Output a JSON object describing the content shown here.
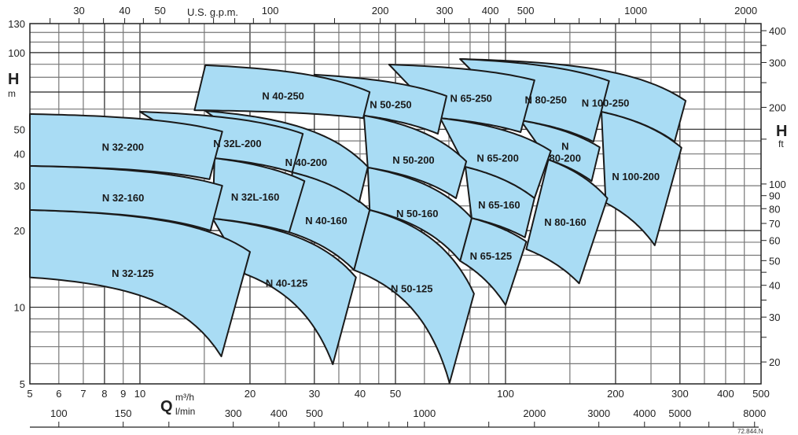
{
  "chart_data": {
    "type": "area",
    "title": "",
    "x_scale": "log",
    "y_scale": "log",
    "xlim": [
      5,
      500
    ],
    "ylim": [
      5,
      130
    ],
    "grid": true,
    "fill_color": "#a9dcf4",
    "line_color": "#1a1a1a",
    "left_axis": {
      "symbol": "H",
      "unit": "m",
      "ticks": [
        5,
        10,
        20,
        30,
        40,
        50,
        100,
        130
      ]
    },
    "right_axis": {
      "symbol": "H",
      "unit": "ft",
      "ticks": [
        20,
        30,
        40,
        50,
        60,
        70,
        80,
        90,
        100,
        200,
        300,
        400
      ],
      "minor_ticks": [
        25,
        35,
        45,
        150,
        250,
        350
      ]
    },
    "top_axis": {
      "unit": "U.S. g.p.m.",
      "ticks": [
        30,
        40,
        50,
        100,
        200,
        300,
        400,
        500,
        1000,
        2000
      ],
      "minor_ticks": [
        25,
        35,
        45,
        60,
        70,
        80,
        90,
        150,
        250,
        350,
        450,
        600,
        700,
        800,
        900,
        1500
      ]
    },
    "bottom_axis": {
      "symbol": "Q",
      "unit": "m³/h",
      "ticks": [
        5,
        6,
        7,
        8,
        9,
        10,
        20,
        30,
        40,
        50,
        100,
        200,
        300,
        400,
        500
      ]
    },
    "lmin_axis": {
      "unit": "l/min",
      "ticks": [
        100,
        150,
        300,
        400,
        500,
        1000,
        2000,
        3000,
        4000,
        5000,
        8000
      ],
      "minor_ticks": [
        200,
        600,
        700,
        800,
        900,
        1500,
        6000,
        7000
      ]
    },
    "code": "72.844.N",
    "regions": [
      {
        "name": "N 100-200",
        "corners": [
          [
            183,
            58.6
          ],
          [
            303,
            42.3
          ],
          [
            256,
            17.5
          ],
          [
            188,
            25.7
          ]
        ]
      },
      {
        "name": "N 100-250",
        "corners": [
          [
            75.1,
            94.4
          ],
          [
            311,
            64.7
          ],
          [
            290,
            44.7
          ],
          [
            183,
            58.6
          ]
        ]
      },
      {
        "name": "N 80-160",
        "corners": [
          [
            131,
            38.0
          ],
          [
            190,
            26.8
          ],
          [
            159,
            12.4
          ],
          [
            114,
            16.9
          ]
        ]
      },
      {
        "name": "N\n80-200",
        "corners": [
          [
            110,
            54.2
          ],
          [
            181,
            42.5
          ],
          [
            172,
            31.3
          ],
          [
            131,
            38.0
          ]
        ]
      },
      {
        "name": "N 80-250",
        "corners": [
          [
            75.1,
            94.4
          ],
          [
            192,
            77.4
          ],
          [
            174,
            44.7
          ],
          [
            110,
            54.2
          ]
        ]
      },
      {
        "name": "N 65-125",
        "corners": [
          [
            80.8,
            22.4
          ],
          [
            114,
            18.1
          ],
          [
            100,
            10.2
          ],
          [
            75.1,
            15.2
          ]
        ]
      },
      {
        "name": "N 65-160",
        "corners": [
          [
            77.7,
            35.6
          ],
          [
            120,
            26.8
          ],
          [
            113,
            18.8
          ],
          [
            80.8,
            22.4
          ]
        ]
      },
      {
        "name": "N 65-200",
        "corners": [
          [
            66.3,
            55.3
          ],
          [
            133,
            41.1
          ],
          [
            120,
            26.8
          ],
          [
            77.7,
            35.6
          ]
        ]
      },
      {
        "name": "N 65-250",
        "corners": [
          [
            48.0,
            89.8
          ],
          [
            120,
            77.9
          ],
          [
            110,
            48.7
          ],
          [
            66.3,
            55.3
          ]
        ]
      },
      {
        "name": "N 50-125",
        "corners": [
          [
            42.5,
            24.1
          ],
          [
            82.0,
            11.3
          ],
          [
            70.3,
            5.04
          ],
          [
            38.5,
            14.0
          ]
        ]
      },
      {
        "name": "N 50-160",
        "corners": [
          [
            42.0,
            35.4
          ],
          [
            80.8,
            22.4
          ],
          [
            75.1,
            15.2
          ],
          [
            42.5,
            24.1
          ]
        ]
      },
      {
        "name": "N 50-200",
        "corners": [
          [
            41.0,
            56.6
          ],
          [
            78.1,
            37.4
          ],
          [
            73.2,
            26.8
          ],
          [
            42.0,
            35.4
          ]
        ]
      },
      {
        "name": "N 50-250",
        "corners": [
          [
            30,
            81.9
          ],
          [
            69.0,
            67.5
          ],
          [
            65.3,
            48.0
          ],
          [
            41.0,
            56.6
          ]
        ]
      },
      {
        "name": "N 40-125",
        "corners": [
          [
            15.8,
            22.3
          ],
          [
            39.0,
            13.1
          ],
          [
            33.7,
            5.97
          ],
          [
            19.4,
            13.5
          ]
        ]
      },
      {
        "name": "N 40-160",
        "corners": [
          [
            26.1,
            33.9
          ],
          [
            42.5,
            24.1
          ],
          [
            38.5,
            14.0
          ],
          [
            25.6,
            19.7
          ]
        ]
      },
      {
        "name": "N 40-200",
        "corners": [
          [
            15.1,
            59.0
          ],
          [
            42.0,
            35.6
          ],
          [
            39.8,
            25.9
          ],
          [
            26.1,
            33.9
          ]
        ]
      },
      {
        "name": "N 40-250",
        "corners": [
          [
            15.1,
            89.2
          ],
          [
            42.5,
            70.0
          ],
          [
            40.8,
            55.3
          ],
          [
            14.1,
            59.4
          ]
        ]
      },
      {
        "name": "N 32L-160",
        "corners": [
          [
            16.0,
            38.5
          ],
          [
            28.2,
            31.3
          ],
          [
            25.6,
            19.7
          ],
          [
            15.8,
            22.3
          ]
        ]
      },
      {
        "name": "N 32L-200",
        "corners": [
          [
            10,
            58.6
          ],
          [
            27.9,
            48.0
          ],
          [
            26.1,
            33.9
          ],
          [
            16.0,
            38.5
          ]
        ]
      },
      {
        "name": "N 32-125",
        "corners": [
          [
            5,
            24.1
          ],
          [
            20,
            16.5
          ],
          [
            16.7,
            6.41
          ],
          [
            5,
            13.1
          ]
        ]
      },
      {
        "name": "N 32-160",
        "corners": [
          [
            5,
            35.9
          ],
          [
            16.8,
            30.0
          ],
          [
            15.6,
            20.0
          ],
          [
            5,
            24.1
          ]
        ]
      },
      {
        "name": "N 32-200",
        "corners": [
          [
            5,
            57.4
          ],
          [
            16.8,
            49.0
          ],
          [
            15.5,
            31.8
          ],
          [
            5,
            35.9
          ]
        ]
      }
    ]
  }
}
